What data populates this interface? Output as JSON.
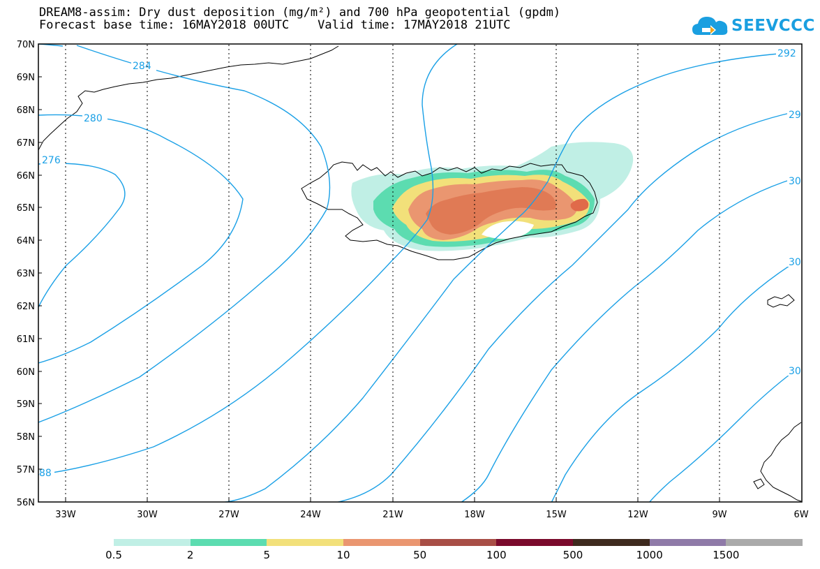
{
  "title": {
    "line1": "DREAM8-assim: Dry dust deposition (mg/m²) and 700 hPa geopotential (gpdm)",
    "line2": "Forecast base time: 16MAY2018 00UTC    Valid time: 17MAY2018 21UTC"
  },
  "logo": {
    "text": "SEEVCCC",
    "color": "#1a9fe0"
  },
  "axes": {
    "lat_labels": [
      "70N",
      "69N",
      "68N",
      "67N",
      "66N",
      "65N",
      "64N",
      "63N",
      "62N",
      "61N",
      "60N",
      "59N",
      "58N",
      "57N",
      "56N"
    ],
    "lon_labels": [
      "33W",
      "30W",
      "27W",
      "24W",
      "21W",
      "18W",
      "15W",
      "12W",
      "9W",
      "6W"
    ]
  },
  "contour_labels": [
    "292",
    "284",
    "280",
    "276",
    "29",
    "30",
    "30",
    "30",
    "88"
  ],
  "legend": {
    "labels": [
      "0.5",
      "2",
      "5",
      "10",
      "50",
      "100",
      "500",
      "1000",
      "1500"
    ],
    "colors": [
      "#c0efe5",
      "#5cdcb0",
      "#f2e07a",
      "#ea9670",
      "#a84e46",
      "#7a0a2c",
      "#3e2a1e",
      "#8f7aa8",
      "#aaaaaa"
    ]
  },
  "colors": {
    "contour": "#1aa0e6",
    "dust_light": "#c0efe5",
    "dust_green": "#5cdcb0",
    "dust_yellow": "#f2e07a",
    "dust_orange": "#ea9670",
    "dust_red": "#e06a4a"
  }
}
